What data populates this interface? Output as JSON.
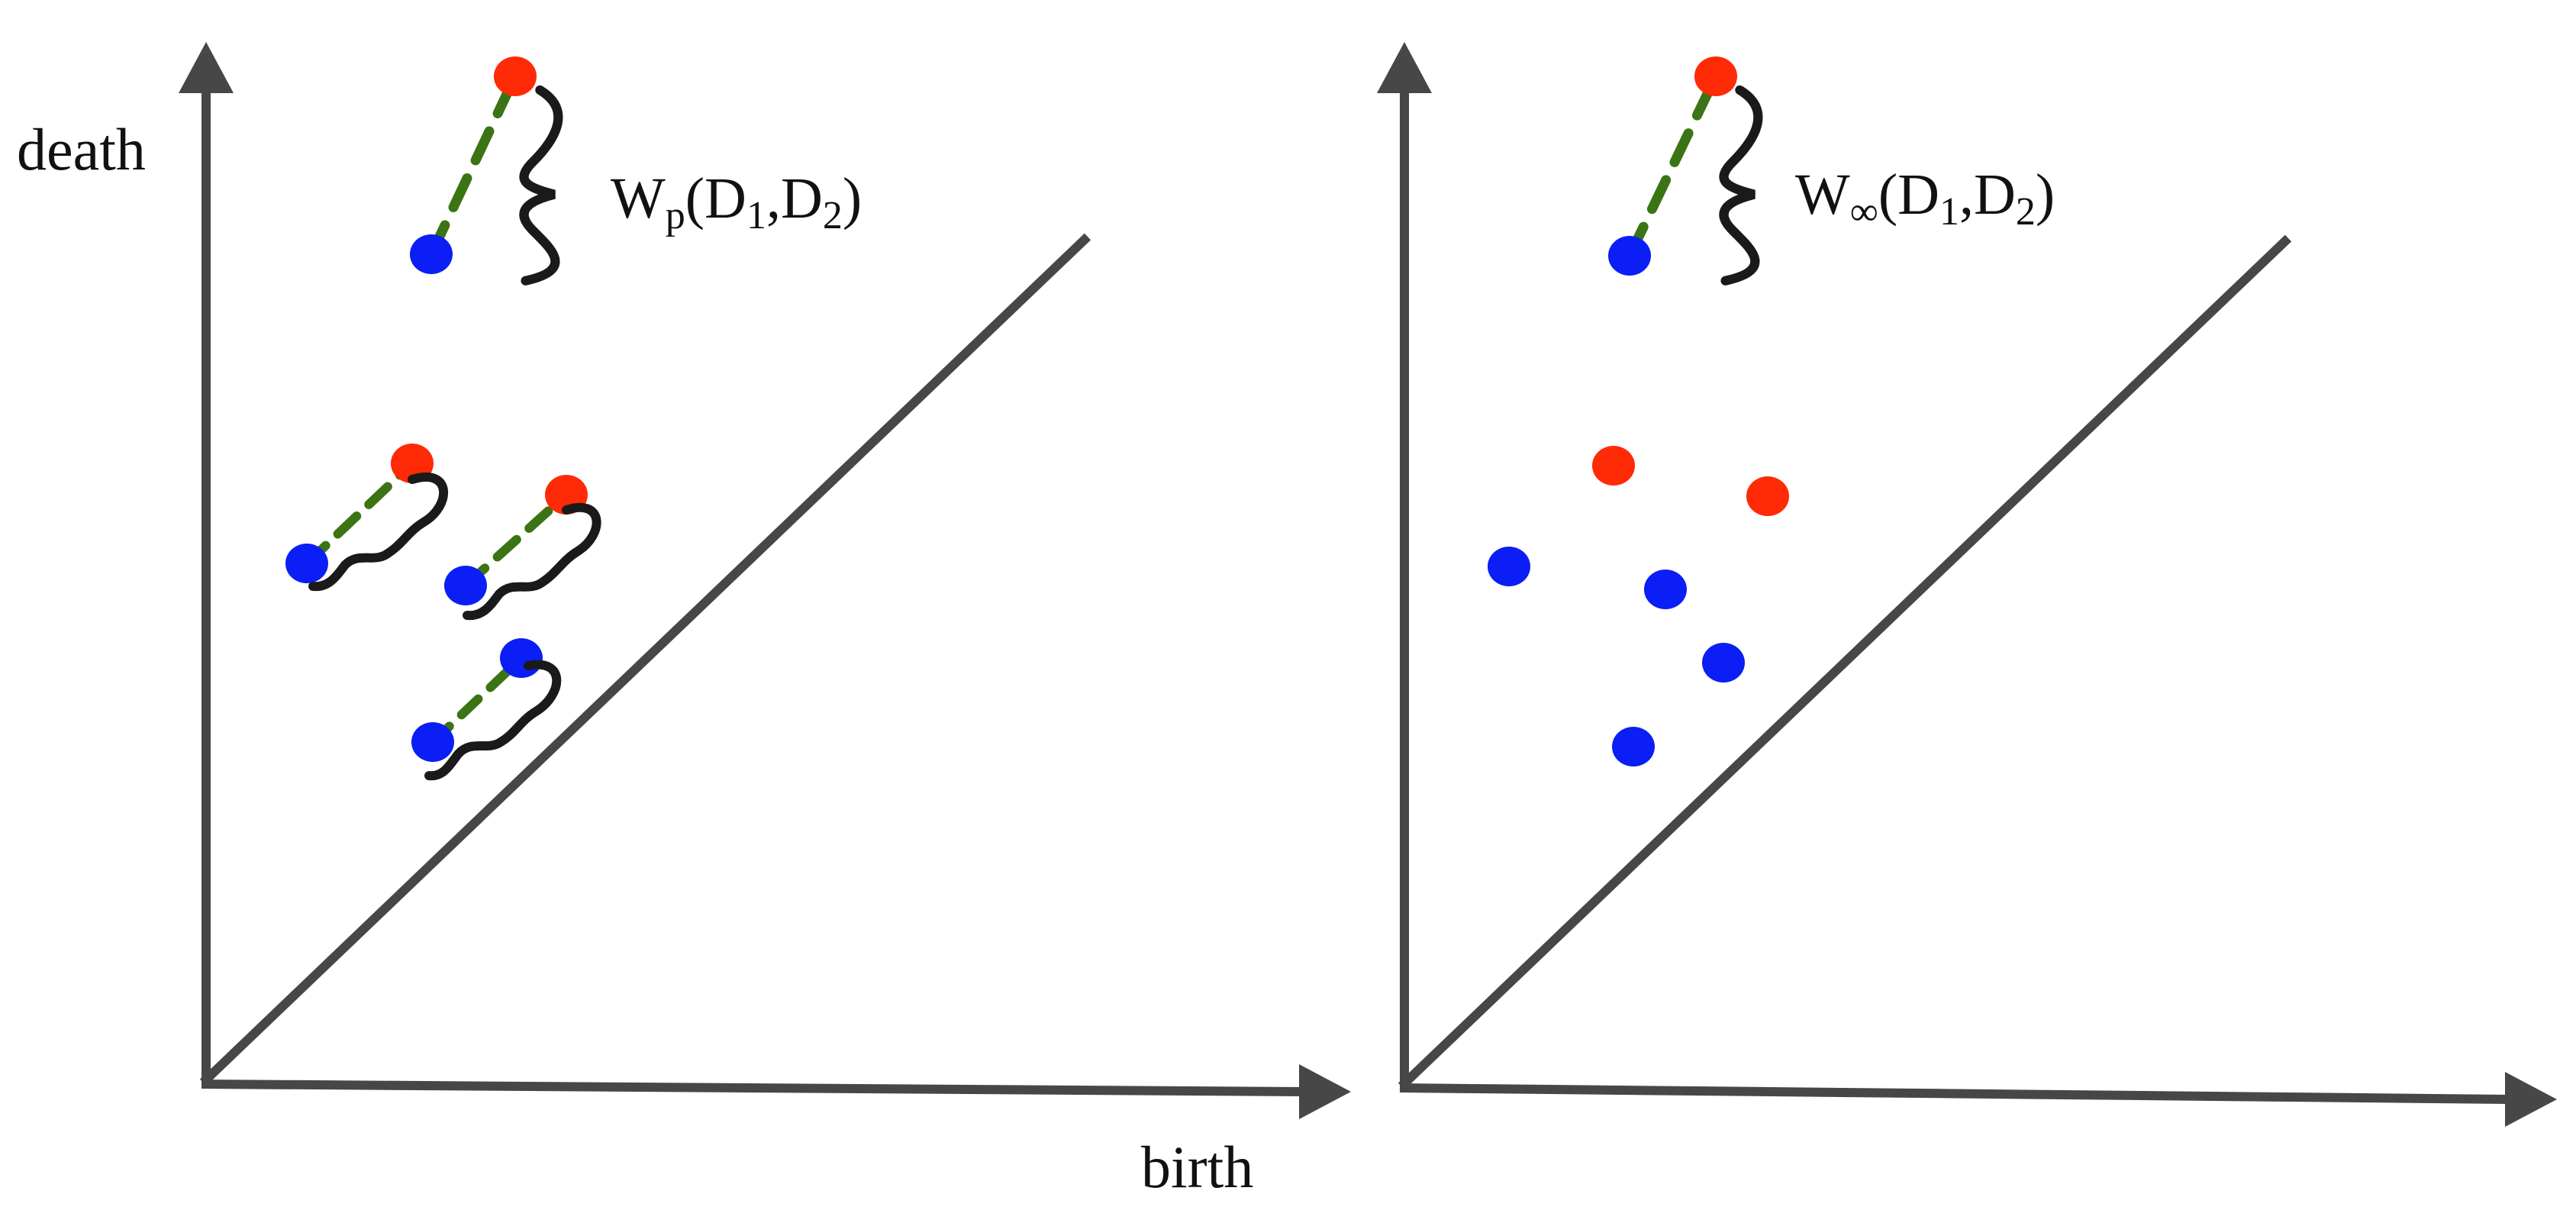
{
  "axis_labels": {
    "y": "death",
    "x": "birth"
  },
  "panels": [
    {
      "label": {
        "main": "W",
        "sub_metric": "p",
        "open": "(D",
        "sub1": "1",
        "comma": ",D",
        "sub2": "2",
        "close": ")"
      },
      "matched_pairs": true
    },
    {
      "label": {
        "main": "W",
        "sub_metric": "∞",
        "open": "(D",
        "sub1": "1",
        "comma": ",D",
        "sub2": "2",
        "close": ")"
      },
      "matched_pairs": false
    }
  ],
  "colors": {
    "axis": "#474747",
    "diagonal": "#474747",
    "diagram_1": "#0a1ef5",
    "diagram_2": "#ff2a06",
    "matching": "#3b7414",
    "brace": "#1a1a1a"
  },
  "icons": [
    "arrow-head-icon",
    "brace-icon"
  ]
}
